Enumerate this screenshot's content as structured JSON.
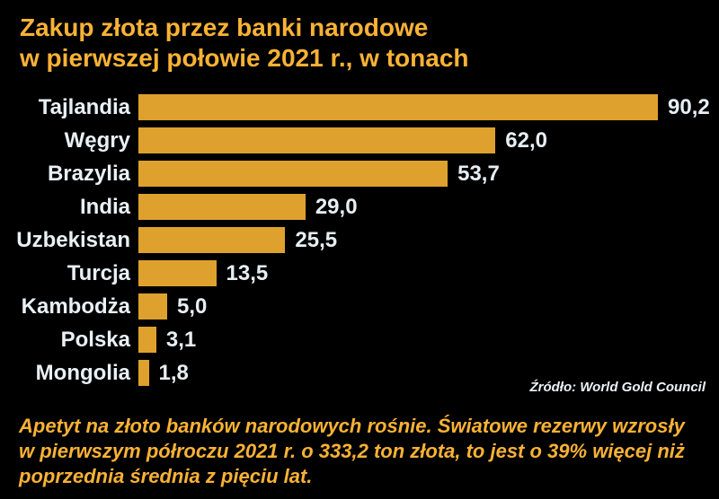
{
  "header": {
    "title_line1": "Zakup złota przez banki narodowe",
    "title_line2": "w pierwszej połowie 2021 r., w tonach"
  },
  "chart_data": {
    "type": "bar",
    "orientation": "horizontal",
    "title": "Zakup złota przez banki narodowe w pierwszej połowie 2021 r., w tonach",
    "categories": [
      "Tajlandia",
      "Węgry",
      "Brazylia",
      "India",
      "Uzbekistan",
      "Turcja",
      "Kambodża",
      "Polska",
      "Mongolia"
    ],
    "values": [
      90.2,
      62.0,
      53.7,
      29.0,
      25.5,
      13.5,
      5.0,
      3.1,
      1.8
    ],
    "value_labels": [
      "90,2",
      "62,0",
      "53,7",
      "29,0",
      "25,5",
      "13,5",
      "5,0",
      "3,1",
      "1,8"
    ],
    "unit": "tony",
    "xlim": [
      0,
      90.2
    ],
    "grid": false,
    "legend": false,
    "bar_color": "#DEA12D",
    "value_label_position": "right-of-bar"
  },
  "source": {
    "label": "Źródło: World Gold Council"
  },
  "footnote": {
    "line1": "Apetyt na złoto banków narodowych rośnie. Światowe rezerwy wzrosły",
    "line2": "w pierwszym półroczu 2021 r. o 333,2 ton złota, to jest o 39% więcej niż",
    "line3": "poprzednia średnia z pięciu lat."
  },
  "colors": {
    "background": "#000000",
    "accent_gold": "#F9B235",
    "bar_gold": "#DEA12D",
    "text_white": "#E9F0F5"
  }
}
